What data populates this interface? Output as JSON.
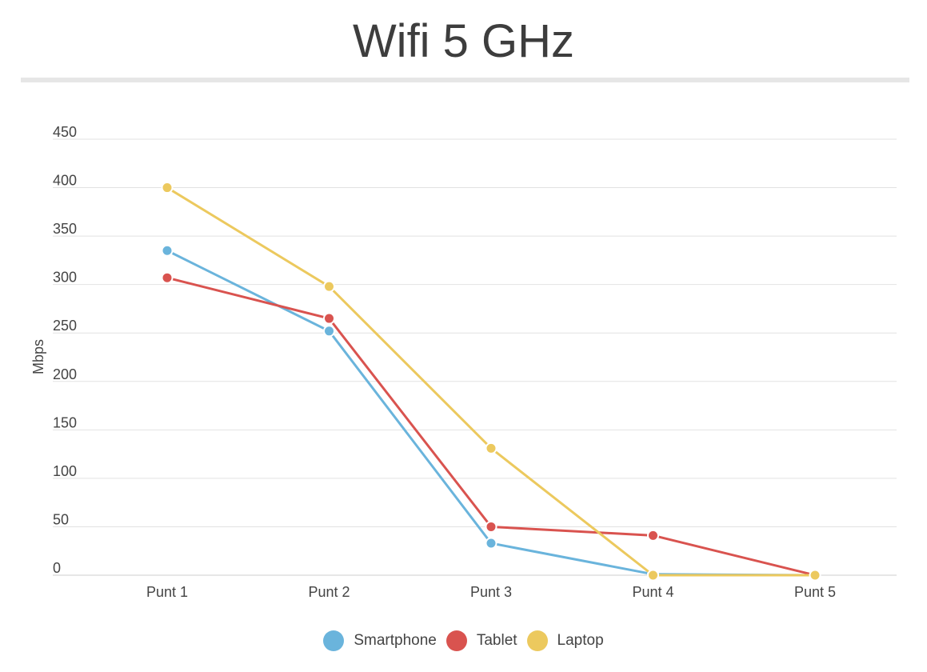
{
  "chart_data": {
    "type": "line",
    "title": "Wifi 5 GHz",
    "xlabel": "",
    "ylabel": "Mbps",
    "categories": [
      "Punt 1",
      "Punt 2",
      "Punt 3",
      "Punt 4",
      "Punt 5"
    ],
    "ylim": [
      0,
      450
    ],
    "yticks": [
      0,
      50,
      100,
      150,
      200,
      250,
      300,
      350,
      400,
      450
    ],
    "grid": true,
    "legend_position": "bottom",
    "series": [
      {
        "name": "Smartphone",
        "color": "#6ab4dc",
        "values": [
          335,
          252,
          33,
          1,
          0
        ]
      },
      {
        "name": "Tablet",
        "color": "#d9534f",
        "values": [
          307,
          265,
          50,
          41,
          0
        ]
      },
      {
        "name": "Laptop",
        "color": "#ecc95e",
        "values": [
          400,
          298,
          131,
          0,
          0
        ]
      }
    ]
  }
}
